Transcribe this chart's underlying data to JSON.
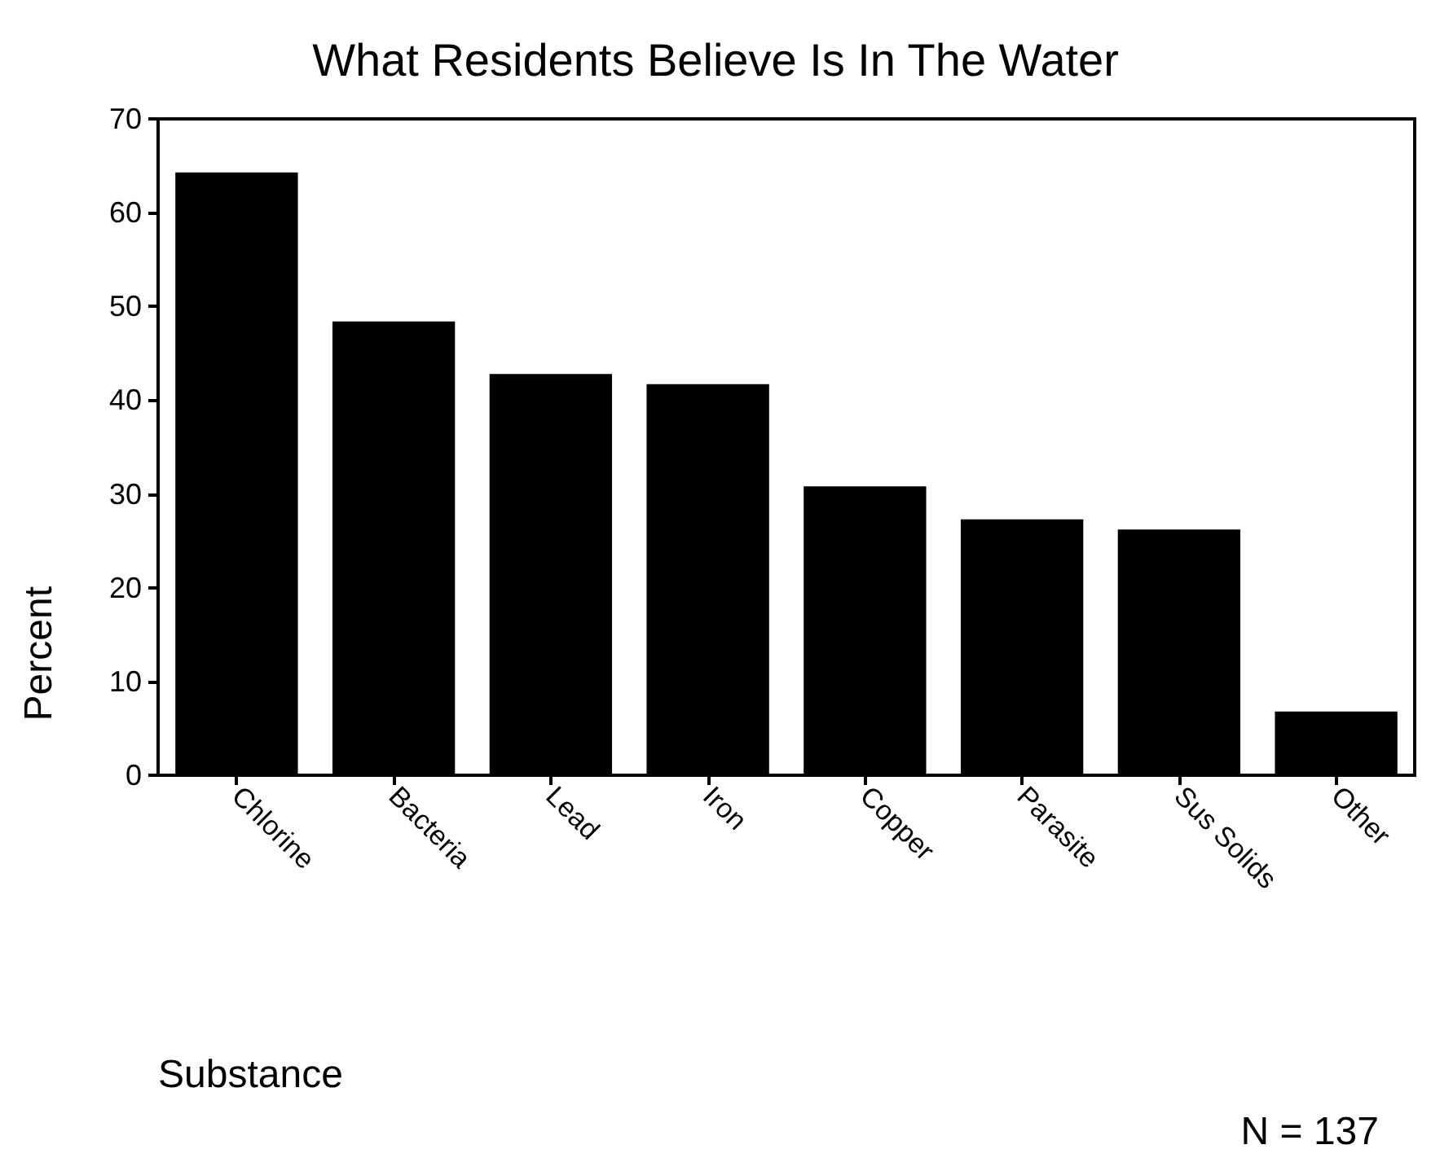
{
  "chart_data": {
    "type": "bar",
    "title": "What Residents Believe Is In The Water",
    "xlabel": "Substance",
    "ylabel": "Percent",
    "annotations": [
      "N = 137"
    ],
    "categories": [
      "Chlorine",
      "Bacteria",
      "Lead",
      "Iron",
      "Copper",
      "Parasite",
      "Sus Solids",
      "Other"
    ],
    "values": [
      64.3,
      48.4,
      42.8,
      41.7,
      30.8,
      27.3,
      26.2,
      6.8
    ],
    "color": "#000000",
    "ylim": [
      0,
      70
    ],
    "yticks": [
      0,
      10,
      20,
      30,
      40,
      50,
      60,
      70
    ],
    "grid": false
  }
}
